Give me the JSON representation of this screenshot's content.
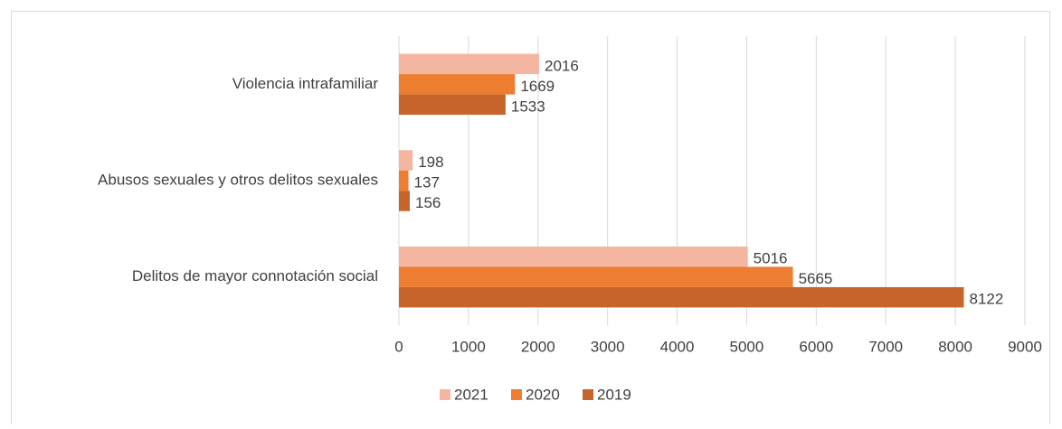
{
  "chart_data": {
    "type": "hbar",
    "categories": [
      "Violencia intrafamiliar",
      "Abusos sexuales y otros delitos sexuales",
      "Delitos de mayor connotación social"
    ],
    "series": [
      {
        "name": "2021",
        "color": "#f4b6a0",
        "values": [
          2016,
          198,
          5016
        ]
      },
      {
        "name": "2020",
        "color": "#ed7d31",
        "values": [
          1669,
          137,
          5665
        ]
      },
      {
        "name": "2019",
        "color": "#c5652b",
        "values": [
          1533,
          156,
          8122
        ]
      }
    ],
    "xlim": [
      0,
      9000
    ],
    "xticks": [
      0,
      1000,
      2000,
      3000,
      4000,
      5000,
      6000,
      7000,
      8000,
      9000
    ],
    "grid": true,
    "legend": "bottom"
  }
}
